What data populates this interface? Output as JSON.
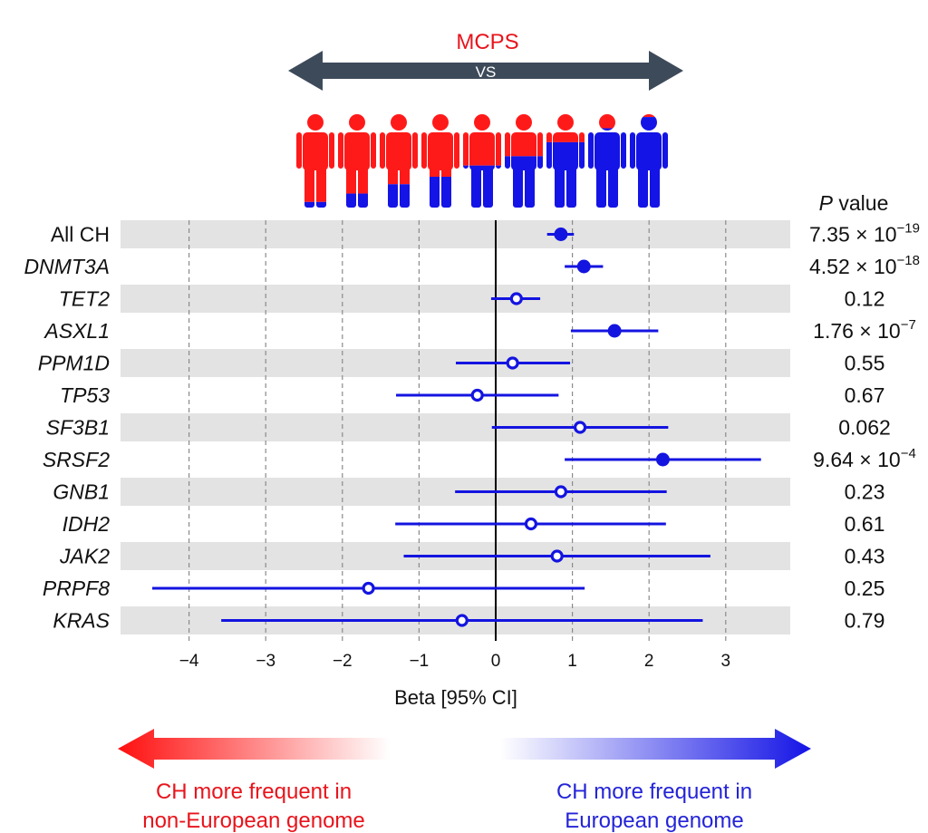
{
  "header": {
    "title": "MCPS",
    "vs": "VS"
  },
  "figure_icons": {
    "name": "ancestry-figures",
    "count": 9,
    "red_color": "#ff1a1a",
    "blue_color": "#1414e6",
    "blue_fractions": [
      0.06,
      0.15,
      0.25,
      0.33,
      0.45,
      0.55,
      0.7,
      0.85,
      0.97
    ]
  },
  "chart_data": {
    "type": "forest",
    "title": "",
    "xlabel": "Beta [95% CI]",
    "xlim": [
      -4.9,
      3.9
    ],
    "xticks": [
      -4,
      -3,
      -2,
      -1,
      0,
      1,
      2,
      3
    ],
    "xtick_labels": [
      "−4",
      "−3",
      "−2",
      "−1",
      "0",
      "1",
      "2",
      "3"
    ],
    "grid": "vertical-dashed",
    "pvalue_header_italic": "P",
    "pvalue_header_rest": " value",
    "rows": [
      {
        "gene": "All CH",
        "italic": false,
        "beta": 0.85,
        "lo": 0.67,
        "hi": 1.02,
        "significant": true,
        "p_base": "7.35 × 10",
        "p_exp": "−19"
      },
      {
        "gene": "DNMT3A",
        "italic": true,
        "beta": 1.15,
        "lo": 0.9,
        "hi": 1.4,
        "significant": true,
        "p_base": "4.52 × 10",
        "p_exp": "−18"
      },
      {
        "gene": "TET2",
        "italic": true,
        "beta": 0.27,
        "lo": -0.06,
        "hi": 0.58,
        "significant": false,
        "p_base": "0.12",
        "p_exp": ""
      },
      {
        "gene": "ASXL1",
        "italic": true,
        "beta": 1.55,
        "lo": 0.98,
        "hi": 2.12,
        "significant": true,
        "p_base": "1.76 × 10",
        "p_exp": "−7"
      },
      {
        "gene": "PPM1D",
        "italic": true,
        "beta": 0.22,
        "lo": -0.52,
        "hi": 0.97,
        "significant": false,
        "p_base": "0.55",
        "p_exp": ""
      },
      {
        "gene": "TP53",
        "italic": true,
        "beta": -0.24,
        "lo": -1.3,
        "hi": 0.82,
        "significant": false,
        "p_base": "0.67",
        "p_exp": ""
      },
      {
        "gene": "SF3B1",
        "italic": true,
        "beta": 1.1,
        "lo": -0.05,
        "hi": 2.25,
        "significant": false,
        "p_base": "0.062",
        "p_exp": ""
      },
      {
        "gene": "SRSF2",
        "italic": true,
        "beta": 2.18,
        "lo": 0.9,
        "hi": 3.46,
        "significant": true,
        "p_base": "9.64 × 10",
        "p_exp": "−4"
      },
      {
        "gene": "GNB1",
        "italic": true,
        "beta": 0.85,
        "lo": -0.53,
        "hi": 2.23,
        "significant": false,
        "p_base": "0.23",
        "p_exp": ""
      },
      {
        "gene": "IDH2",
        "italic": true,
        "beta": 0.46,
        "lo": -1.31,
        "hi": 2.22,
        "significant": false,
        "p_base": "0.61",
        "p_exp": ""
      },
      {
        "gene": "JAK2",
        "italic": true,
        "beta": 0.8,
        "lo": -1.2,
        "hi": 2.8,
        "significant": false,
        "p_base": "0.43",
        "p_exp": ""
      },
      {
        "gene": "PRPF8",
        "italic": true,
        "beta": -1.66,
        "lo": -4.48,
        "hi": 1.16,
        "significant": false,
        "p_base": "0.25",
        "p_exp": ""
      },
      {
        "gene": "KRAS",
        "italic": true,
        "beta": -0.44,
        "lo": -3.58,
        "hi": 2.7,
        "significant": false,
        "p_base": "0.79",
        "p_exp": ""
      }
    ]
  },
  "annotations": {
    "left_line1": "CH more frequent in",
    "left_line2": "non-European genome",
    "right_line1": "CH more frequent in",
    "right_line2": "European genome"
  },
  "colors": {
    "point": "#1414e0",
    "band": "#e3e3e3",
    "arrow_dark": "#3d4a5a",
    "red": "#e8141c",
    "blue": "#2424d8",
    "grid": "#8a8a8a"
  }
}
